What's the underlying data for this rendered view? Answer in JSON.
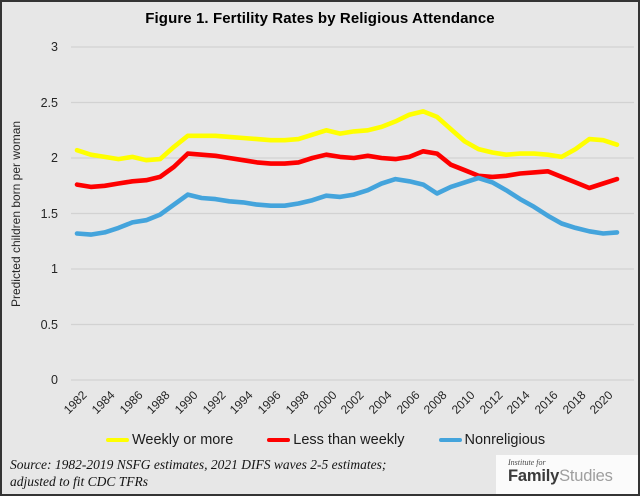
{
  "title": "Figure 1. Fertility Rates by Religious Attendance",
  "y_axis_label": "Predicted children born per woman",
  "source": {
    "line1": "Source: 1982-2019 NSFG estimates, 2021 DIFS waves 2-5 estimates;",
    "line2": "adjusted to fit CDC TFRs"
  },
  "logo": {
    "line1": "Institute for",
    "word_bold": "Family",
    "word_light": "Studies"
  },
  "colors": {
    "background": "#e7e7e7",
    "gridline": "#d2d2d2",
    "axis_text": "#262626",
    "title_text": "#000000",
    "border": "#343434",
    "weekly_or_more": "#ffff00",
    "less_than_weekly": "#fe0000",
    "nonreligious": "#44a4dc",
    "logo_family": "#3b3b3b",
    "logo_studies": "#9e9e9e"
  },
  "chart_data": {
    "type": "line",
    "title": "Figure 1. Fertility Rates by Religious Attendance",
    "xlabel": "",
    "ylabel": "Predicted children born per woman",
    "ylim": [
      0,
      3
    ],
    "y_ticks": [
      "0",
      "0.5",
      "1",
      "1.5",
      "2",
      "2.5",
      "3"
    ],
    "x_tick_labels": [
      "1982",
      "1984",
      "1986",
      "1988",
      "1990",
      "1992",
      "1994",
      "1996",
      "1998",
      "2000",
      "2002",
      "2004",
      "2006",
      "2008",
      "2010",
      "2012",
      "2014",
      "2016",
      "2018",
      "2020"
    ],
    "grid": "horizontal",
    "legend_position": "bottom",
    "x": [
      1982,
      1983,
      1984,
      1985,
      1986,
      1987,
      1988,
      1989,
      1990,
      1991,
      1992,
      1993,
      1994,
      1995,
      1996,
      1997,
      1998,
      1999,
      2000,
      2001,
      2002,
      2003,
      2004,
      2005,
      2006,
      2007,
      2008,
      2009,
      2010,
      2011,
      2012,
      2013,
      2014,
      2015,
      2016,
      2017,
      2018,
      2019,
      2020,
      2021
    ],
    "series": [
      {
        "name": "Weekly or more",
        "color": "#ffff00",
        "values": [
          2.07,
          2.03,
          2.01,
          1.99,
          2.01,
          1.98,
          1.99,
          2.1,
          2.2,
          2.2,
          2.2,
          2.19,
          2.18,
          2.17,
          2.16,
          2.16,
          2.17,
          2.21,
          2.25,
          2.22,
          2.24,
          2.25,
          2.28,
          2.33,
          2.39,
          2.42,
          2.37,
          2.26,
          2.15,
          2.08,
          2.05,
          2.03,
          2.04,
          2.04,
          2.03,
          2.01,
          2.08,
          2.17,
          2.16,
          2.12
        ]
      },
      {
        "name": "Less than weekly",
        "color": "#fe0000",
        "values": [
          1.76,
          1.74,
          1.75,
          1.77,
          1.79,
          1.8,
          1.83,
          1.92,
          2.04,
          2.03,
          2.02,
          2.0,
          1.98,
          1.96,
          1.95,
          1.95,
          1.96,
          2.0,
          2.03,
          2.01,
          2.0,
          2.02,
          2.0,
          1.99,
          2.01,
          2.06,
          2.04,
          1.94,
          1.89,
          1.84,
          1.83,
          1.84,
          1.86,
          1.87,
          1.88,
          1.83,
          1.78,
          1.73,
          1.77,
          1.81
        ]
      },
      {
        "name": "Nonreligious",
        "color": "#44a4dc",
        "values": [
          1.32,
          1.31,
          1.33,
          1.37,
          1.42,
          1.44,
          1.49,
          1.58,
          1.67,
          1.64,
          1.63,
          1.61,
          1.6,
          1.58,
          1.57,
          1.57,
          1.59,
          1.62,
          1.66,
          1.65,
          1.67,
          1.71,
          1.77,
          1.81,
          1.79,
          1.76,
          1.68,
          1.74,
          1.78,
          1.82,
          1.78,
          1.71,
          1.63,
          1.56,
          1.48,
          1.41,
          1.37,
          1.34,
          1.32,
          1.33
        ]
      }
    ]
  }
}
